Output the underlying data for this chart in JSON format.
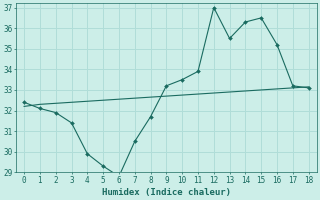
{
  "x": [
    0,
    1,
    2,
    3,
    4,
    5,
    6,
    7,
    8,
    9,
    10,
    11,
    12,
    13,
    14,
    15,
    16,
    17,
    18
  ],
  "y_main": [
    32.4,
    32.1,
    31.9,
    31.4,
    29.9,
    29.3,
    28.8,
    30.5,
    31.7,
    33.2,
    33.5,
    33.9,
    37.0,
    35.5,
    36.3,
    36.5,
    35.2,
    33.2,
    33.1
  ],
  "y_trend": [
    32.2,
    32.3,
    32.35,
    32.4,
    32.45,
    32.5,
    32.55,
    32.6,
    32.65,
    32.7,
    32.75,
    32.8,
    32.85,
    32.9,
    32.95,
    33.0,
    33.05,
    33.1,
    33.15
  ],
  "line_color": "#1a6b60",
  "bg_color": "#cceee8",
  "grid_color": "#b0ddd8",
  "xlabel": "Humidex (Indice chaleur)",
  "ylim": [
    29,
    37
  ],
  "xlim": [
    -0.5,
    18.5
  ],
  "yticks": [
    29,
    30,
    31,
    32,
    33,
    34,
    35,
    36,
    37
  ],
  "xticks": [
    0,
    1,
    2,
    3,
    4,
    5,
    6,
    7,
    8,
    9,
    10,
    11,
    12,
    13,
    14,
    15,
    16,
    17,
    18
  ],
  "tick_fontsize": 5.5,
  "xlabel_fontsize": 6.5,
  "marker_size": 2.0
}
